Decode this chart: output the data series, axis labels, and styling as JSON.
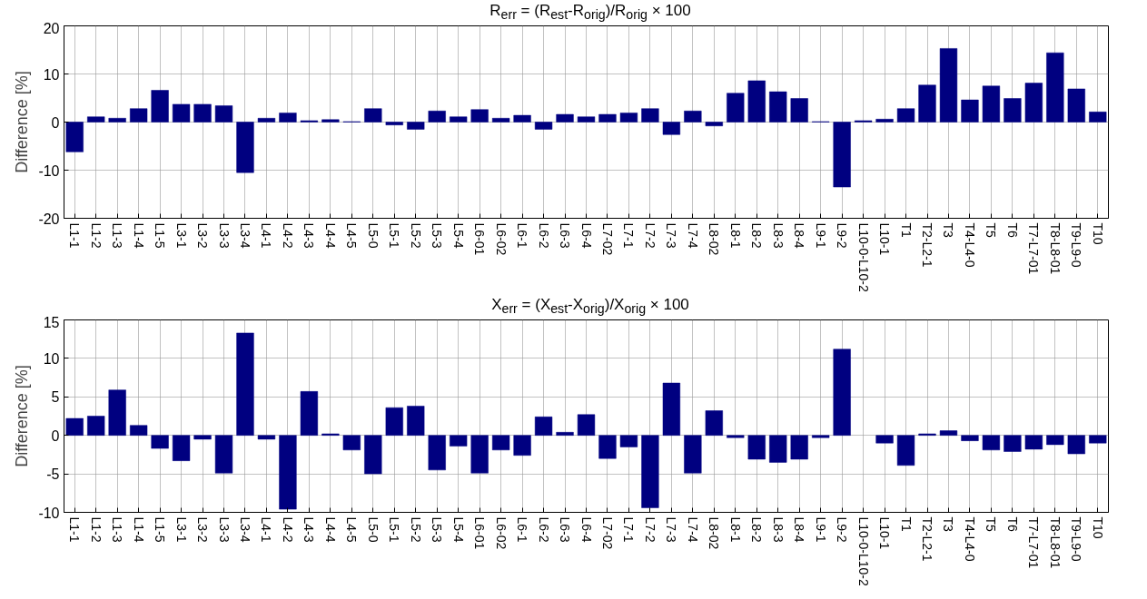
{
  "chart_data": [
    {
      "type": "bar",
      "title": "R$_{err}$ = (R$_{est}$-R$_{orig}$)/R$_{orig}$ × 100",
      "ylabel": "Difference [%]",
      "color": "#000080",
      "grid": true,
      "ylim": [
        -20,
        20
      ],
      "yticks": [
        -20,
        -10,
        0,
        10,
        20
      ],
      "categories": [
        "L1-1",
        "L1-2",
        "L1-3",
        "L1-4",
        "L1-5",
        "L3-1",
        "L3-2",
        "L3-3",
        "L3-4",
        "L4-1",
        "L4-2",
        "L4-3",
        "L4-4",
        "L4-5",
        "L5-0",
        "L5-1",
        "L5-2",
        "L5-3",
        "L5-4",
        "L6-01",
        "L6-02",
        "L6-1",
        "L6-2",
        "L6-3",
        "L6-4",
        "L7-02",
        "L7-1",
        "L7-2",
        "L7-3",
        "L7-4",
        "L8-02",
        "L8-1",
        "L8-2",
        "L8-3",
        "L8-4",
        "L9-1",
        "L9-2",
        "L10-0-L10-2",
        "L10-1",
        "T1",
        "T2-L2-1",
        "T3",
        "T4-L4-0",
        "T5",
        "T6",
        "T7-L7-01",
        "T8-L8-01",
        "T9-L9-0",
        "T10"
      ],
      "values": [
        -6.2,
        1.1,
        0.8,
        2.8,
        6.6,
        3.7,
        3.7,
        3.4,
        -10.5,
        0.8,
        1.9,
        0.3,
        0.5,
        0.1,
        2.8,
        -0.6,
        -1.5,
        2.3,
        1.1,
        2.6,
        0.8,
        1.4,
        -1.5,
        1.6,
        1.1,
        1.6,
        1.9,
        2.8,
        -2.6,
        2.3,
        -0.8,
        6.0,
        8.6,
        6.3,
        4.9,
        0.1,
        -13.5,
        0.3,
        0.6,
        2.8,
        7.7,
        15.3,
        4.6,
        7.5,
        4.9,
        8.1,
        14.4,
        6.9,
        2.1
      ]
    },
    {
      "type": "bar",
      "title": "X$_{err}$ = (X$_{est}$-X$_{orig}$)/X$_{orig}$ × 100",
      "ylabel": "Difference [%]",
      "color": "#000080",
      "grid": true,
      "ylim": [
        -10,
        15
      ],
      "yticks": [
        -10,
        -5,
        0,
        5,
        10,
        15
      ],
      "categories": [
        "L1-1",
        "L1-2",
        "L1-3",
        "L1-4",
        "L1-5",
        "L3-1",
        "L3-2",
        "L3-3",
        "L3-4",
        "L4-1",
        "L4-2",
        "L4-3",
        "L4-4",
        "L4-5",
        "L5-0",
        "L5-1",
        "L5-2",
        "L5-3",
        "L5-4",
        "L6-01",
        "L6-02",
        "L6-1",
        "L6-2",
        "L6-3",
        "L6-4",
        "L7-02",
        "L7-1",
        "L7-2",
        "L7-3",
        "L7-4",
        "L8-02",
        "L8-1",
        "L8-2",
        "L8-3",
        "L8-4",
        "L9-1",
        "L9-2",
        "L10-0-L10-2",
        "L10-1",
        "T1",
        "T2-L2-1",
        "T3",
        "T4-L4-0",
        "T5",
        "T6",
        "T7-L7-01",
        "T8-L8-01",
        "T9-L9-0",
        "T10"
      ],
      "values": [
        2.2,
        2.5,
        5.9,
        1.3,
        -1.7,
        -3.3,
        -0.5,
        -4.9,
        13.3,
        -0.5,
        -9.6,
        5.7,
        0.2,
        -1.9,
        -5.0,
        3.6,
        3.8,
        -4.5,
        -1.4,
        -4.9,
        -1.9,
        -2.6,
        2.4,
        0.4,
        2.7,
        -3.0,
        -1.5,
        -9.4,
        6.8,
        -4.9,
        3.2,
        -0.3,
        -3.1,
        -3.5,
        -3.1,
        -0.3,
        11.2,
        null,
        -1.0,
        -3.9,
        0.2,
        0.6,
        -0.7,
        -1.9,
        -2.1,
        -1.8,
        -1.2,
        -2.4,
        -1.0
      ]
    }
  ]
}
